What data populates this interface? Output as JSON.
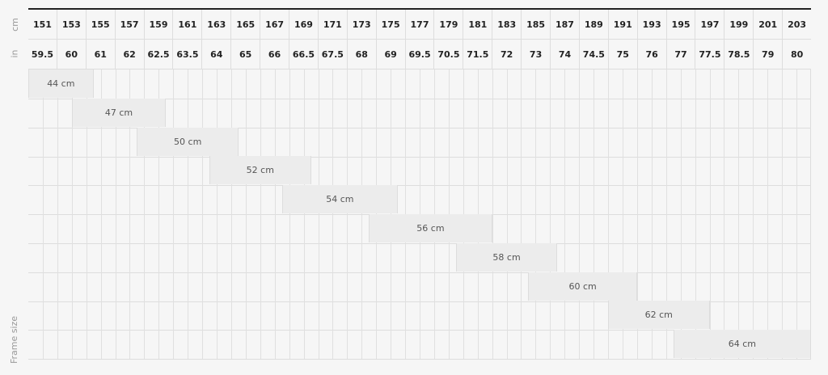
{
  "labels": {
    "cm": "cm",
    "in": "in",
    "frame": "Frame size"
  },
  "cm": [
    "151",
    "153",
    "155",
    "157",
    "159",
    "161",
    "163",
    "165",
    "167",
    "169",
    "171",
    "173",
    "175",
    "177",
    "179",
    "181",
    "183",
    "185",
    "187",
    "189",
    "191",
    "193",
    "195",
    "197",
    "199",
    "201",
    "203"
  ],
  "in": [
    "59.5",
    "60",
    "61",
    "62",
    "62.5",
    "63.5",
    "64",
    "65",
    "66",
    "66.5",
    "67.5",
    "68",
    "69",
    "69.5",
    "70.5",
    "71.5",
    "72",
    "73",
    "74",
    "74.5",
    "75",
    "76",
    "77",
    "77.5",
    "78.5",
    "79",
    "80"
  ],
  "frames": [
    {
      "label": "44 cm",
      "from_cm": 150,
      "to_cm": 154.5
    },
    {
      "label": "47 cm",
      "from_cm": 153,
      "to_cm": 159.5
    },
    {
      "label": "50 cm",
      "from_cm": 157.5,
      "to_cm": 164.5
    },
    {
      "label": "52 cm",
      "from_cm": 162.5,
      "to_cm": 169.5
    },
    {
      "label": "54 cm",
      "from_cm": 167.5,
      "to_cm": 175.5
    },
    {
      "label": "56 cm",
      "from_cm": 173.5,
      "to_cm": 182
    },
    {
      "label": "58 cm",
      "from_cm": 179.5,
      "to_cm": 186.5
    },
    {
      "label": "60 cm",
      "from_cm": 184.5,
      "to_cm": 192
    },
    {
      "label": "62 cm",
      "from_cm": 190,
      "to_cm": 197
    },
    {
      "label": "64 cm",
      "from_cm": 194.5,
      "to_cm": 204
    }
  ]
}
